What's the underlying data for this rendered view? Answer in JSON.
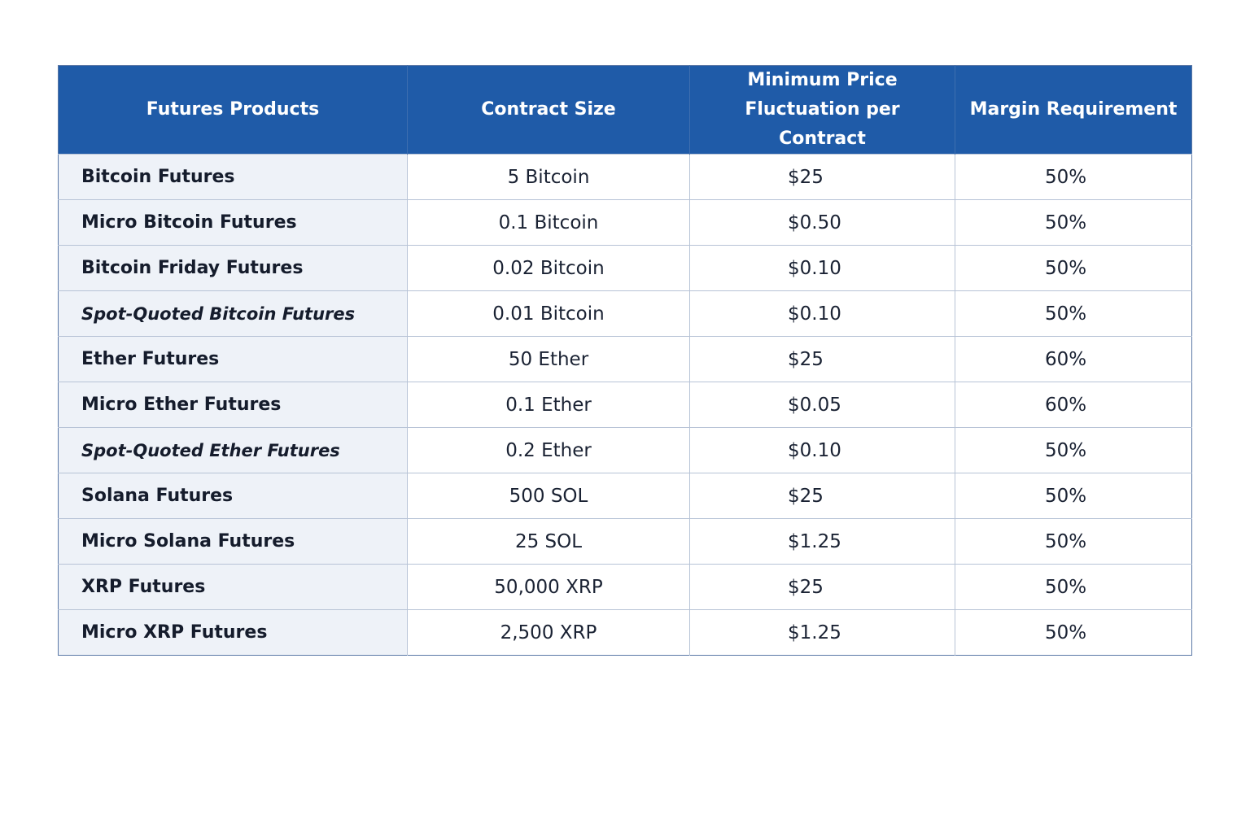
{
  "table": {
    "headers": [
      "Futures Products",
      "Contract Size",
      "Minimum Price Fluctuation per Contract",
      "Margin Requirement"
    ],
    "rows": [
      {
        "product": "Bitcoin Futures",
        "italic": false,
        "contract_size": "5 Bitcoin",
        "min_fluctuation": "$25",
        "margin": "50%"
      },
      {
        "product": "Micro Bitcoin Futures",
        "italic": false,
        "contract_size": "0.1 Bitcoin",
        "min_fluctuation": "$0.50",
        "margin": "50%"
      },
      {
        "product": "Bitcoin Friday Futures",
        "italic": false,
        "contract_size": "0.02 Bitcoin",
        "min_fluctuation": "$0.10",
        "margin": "50%"
      },
      {
        "product": "Spot-Quoted Bitcoin Futures",
        "italic": true,
        "contract_size": "0.01 Bitcoin",
        "min_fluctuation": "$0.10",
        "margin": "50%"
      },
      {
        "product": "Ether Futures",
        "italic": false,
        "contract_size": "50 Ether",
        "min_fluctuation": "$25",
        "margin": "60%"
      },
      {
        "product": "Micro Ether Futures",
        "italic": false,
        "contract_size": "0.1 Ether",
        "min_fluctuation": "$0.05",
        "margin": "60%"
      },
      {
        "product": "Spot-Quoted Ether Futures",
        "italic": true,
        "contract_size": "0.2 Ether",
        "min_fluctuation": "$0.10",
        "margin": "50%"
      },
      {
        "product": "Solana Futures",
        "italic": false,
        "contract_size": "500 SOL",
        "min_fluctuation": "$25",
        "margin": "50%"
      },
      {
        "product": "Micro Solana Futures",
        "italic": false,
        "contract_size": "25 SOL",
        "min_fluctuation": "$1.25",
        "margin": "50%"
      },
      {
        "product": "XRP Futures",
        "italic": false,
        "contract_size": "50,000 XRP",
        "min_fluctuation": "$25",
        "margin": "50%"
      },
      {
        "product": "Micro XRP Futures",
        "italic": false,
        "contract_size": "2,500 XRP",
        "min_fluctuation": "$1.25",
        "margin": "50%"
      }
    ]
  },
  "colors": {
    "header_bg": "#1f5ba8",
    "header_text": "#ffffff",
    "product_col_bg": "#eef2f8",
    "border": "#b7c3d6"
  }
}
